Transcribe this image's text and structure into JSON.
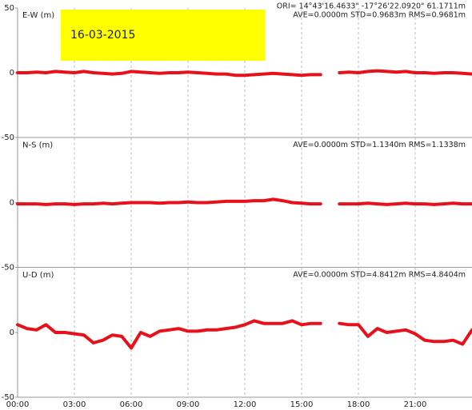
{
  "chart_data": [
    {
      "type": "line",
      "title": "E-W (m)",
      "date_label": "16-03-2015",
      "annotations": [
        "ORI= 14°43'16.4633\" -17°26'22.0920\" 61.1711m",
        "AVE=0.0000m STD=0.9683m RMS=0.9681m"
      ],
      "color": "#e8111b",
      "xlim": [
        0,
        24
      ],
      "ylim": [
        -50,
        50
      ],
      "yticks": [
        -50,
        0,
        50
      ],
      "x": [
        0,
        0.5,
        1,
        1.5,
        2,
        2.5,
        3,
        3.5,
        4,
        4.5,
        5,
        5.5,
        6,
        6.5,
        7,
        7.5,
        8,
        8.5,
        9,
        9.5,
        10,
        10.5,
        11,
        11.5,
        12,
        12.5,
        13,
        13.5,
        14,
        14.5,
        15,
        15.5,
        16,
        16.5,
        17,
        17.5,
        18,
        18.5,
        19,
        19.5,
        20,
        20.5,
        21,
        21.5,
        22,
        22.5,
        23,
        23.5,
        24
      ],
      "values": [
        0,
        0,
        0.5,
        0,
        1,
        0.5,
        0,
        1,
        0,
        -0.5,
        -1,
        -0.5,
        1,
        0.5,
        0,
        -0.5,
        0,
        0,
        0.5,
        0,
        -0.5,
        -1,
        -1,
        -2,
        -2,
        -1.5,
        -1,
        -0.5,
        -1,
        -1.5,
        -2,
        -1.5,
        -1.5,
        null,
        0,
        0.5,
        0,
        1,
        1.5,
        1,
        0.5,
        1,
        0,
        0,
        -0.5,
        0,
        0,
        -0.5,
        -1
      ]
    },
    {
      "type": "line",
      "title": "N-S (m)",
      "annotations": [
        "AVE=0.0000m STD=1.1340m RMS=1.1338m"
      ],
      "color": "#e8111b",
      "xlim": [
        0,
        24
      ],
      "ylim": [
        -50,
        50
      ],
      "yticks": [
        -50,
        0
      ],
      "x": [
        0,
        0.5,
        1,
        1.5,
        2,
        2.5,
        3,
        3.5,
        4,
        4.5,
        5,
        5.5,
        6,
        6.5,
        7,
        7.5,
        8,
        8.5,
        9,
        9.5,
        10,
        10.5,
        11,
        11.5,
        12,
        12.5,
        13,
        13.5,
        14,
        14.5,
        15,
        15.5,
        16,
        16.5,
        17,
        17.5,
        18,
        18.5,
        19,
        19.5,
        20,
        20.5,
        21,
        21.5,
        22,
        22.5,
        23,
        23.5,
        24
      ],
      "values": [
        -1,
        -1,
        -1,
        -1.5,
        -1,
        -1,
        -1.5,
        -1,
        -1,
        -0.5,
        -1,
        -0.5,
        0,
        0,
        0,
        -0.5,
        0,
        0,
        0.5,
        0,
        0,
        0.5,
        1,
        1,
        1,
        1.5,
        1.5,
        2.5,
        1.5,
        0,
        -0.5,
        -1,
        -1,
        null,
        -1,
        -1,
        -1,
        -0.5,
        -1,
        -1.5,
        -1,
        -0.5,
        -1,
        -1,
        -1.5,
        -1,
        -0.5,
        -1,
        -1
      ]
    },
    {
      "type": "line",
      "title": "U-D (m)",
      "annotations": [
        "AVE=0.0000m STD=4.8412m RMS=4.8404m"
      ],
      "color": "#e8111b",
      "xlim": [
        0,
        24
      ],
      "ylim": [
        -50,
        50
      ],
      "yticks": [
        -50,
        0
      ],
      "xticks": [
        {
          "value": 0,
          "label": "00:00"
        },
        {
          "value": 3,
          "label": "03:00"
        },
        {
          "value": 6,
          "label": "06:00"
        },
        {
          "value": 9,
          "label": "09:00"
        },
        {
          "value": 12,
          "label": "12:00"
        },
        {
          "value": 15,
          "label": "15:00"
        },
        {
          "value": 18,
          "label": "18:00"
        },
        {
          "value": 21,
          "label": "21:00"
        }
      ],
      "x": [
        0,
        0.5,
        1,
        1.5,
        2,
        2.5,
        3,
        3.5,
        4,
        4.5,
        5,
        5.5,
        6,
        6.5,
        7,
        7.5,
        8,
        8.5,
        9,
        9.5,
        10,
        10.5,
        11,
        11.5,
        12,
        12.5,
        13,
        13.5,
        14,
        14.5,
        15,
        15.5,
        16,
        16.5,
        17,
        17.5,
        18,
        18.5,
        19,
        19.5,
        20,
        20.5,
        21,
        21.5,
        22,
        22.5,
        23,
        23.5,
        24
      ],
      "values": [
        6,
        3,
        2,
        6,
        0,
        0,
        -1,
        -2,
        -8,
        -6,
        -2,
        -3,
        -12,
        0,
        -3,
        1,
        2,
        3,
        1,
        1,
        2,
        2,
        3,
        4,
        6,
        9,
        7,
        7,
        7,
        9,
        6,
        7,
        7,
        null,
        7,
        6,
        6,
        -3,
        3,
        0,
        1,
        2,
        -1,
        -6,
        -7,
        -7,
        -6,
        -9,
        2
      ]
    }
  ]
}
